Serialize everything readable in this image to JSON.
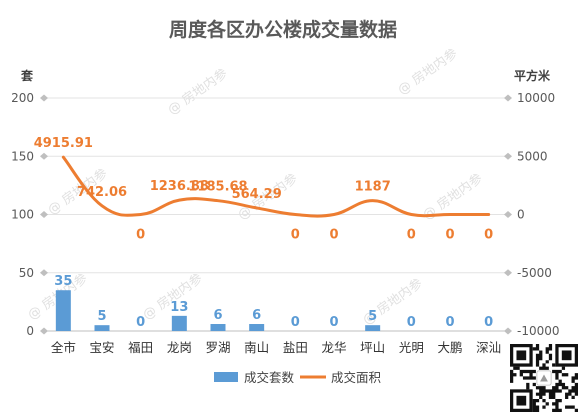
{
  "chart_data": {
    "type": "bar",
    "title": "周度各区办公楼成交量数据",
    "categories": [
      "全市",
      "宝安",
      "福田",
      "龙岗",
      "罗湖",
      "南山",
      "盐田",
      "龙华",
      "坪山",
      "光明",
      "大鹏",
      "深汕"
    ],
    "series": [
      {
        "name": "成交套数",
        "type": "bar",
        "axis": "left",
        "color": "#5b9bd5",
        "values": [
          35,
          5,
          0,
          13,
          6,
          6,
          0,
          0,
          5,
          0,
          0,
          0
        ],
        "labels": [
          "35",
          "5",
          "0",
          "13",
          "6",
          "6",
          "0",
          "0",
          "5",
          "0",
          "0",
          "0"
        ]
      },
      {
        "name": "成交面积",
        "type": "line",
        "axis": "right",
        "color": "#ed7d31",
        "smooth": true,
        "values": [
          4915.91,
          742.06,
          0,
          1236.88,
          1185.68,
          564.29,
          0,
          0,
          1187,
          0,
          0,
          0
        ],
        "labels": [
          "4915.91",
          "742.06",
          "0",
          "1236.88",
          "1185.68",
          "564.29",
          "0",
          "0",
          "1187",
          "0",
          "0",
          "0"
        ]
      }
    ],
    "left_axis": {
      "unit": "套",
      "ylim": [
        0,
        200
      ],
      "ticks": [
        "0",
        "50",
        "100",
        "150",
        "200"
      ]
    },
    "right_axis": {
      "unit": "平方米",
      "ylim": [
        -10000,
        10000
      ],
      "ticks": [
        "-10000",
        "-5000",
        "0",
        "5000",
        "10000"
      ]
    },
    "grid": true,
    "legend_position": "bottom"
  },
  "watermark": "@ 房地内参",
  "qr_code_icon": "qr-code-icon"
}
